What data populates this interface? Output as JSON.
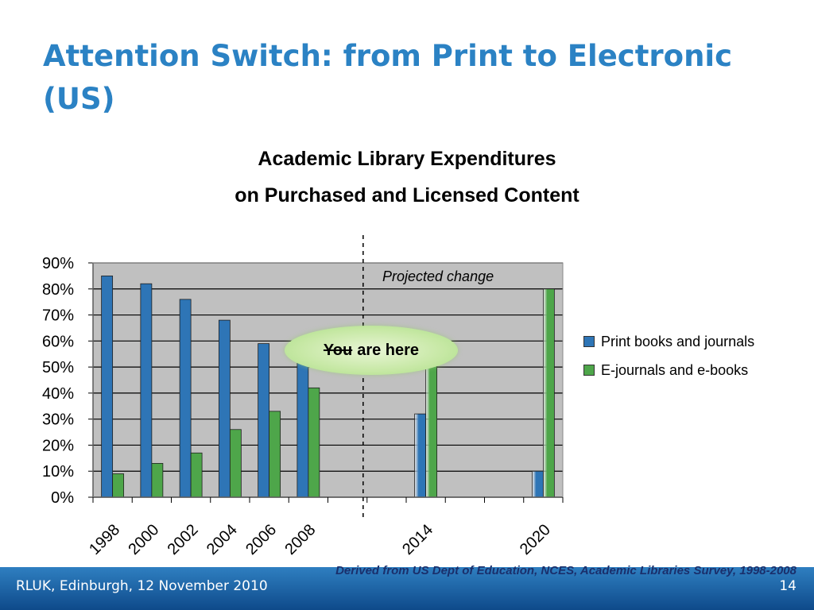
{
  "slide": {
    "title": "Attention Switch: from Print to Electronic (US)",
    "footer_left": "RLUK, Edinburgh, 12 November 2010",
    "page_number": "14",
    "source": "Derived from US Dept of Education, NCES, Academic Libraries Survey, 1998-2008"
  },
  "annotations": {
    "projected": "Projected change",
    "callout_strike": "You",
    "callout_rest": "are here"
  },
  "chart_data": {
    "type": "bar",
    "title_line1": "Academic Library Expenditures",
    "title_line2": "on Purchased and Licensed Content",
    "categories": [
      "1998",
      "2000",
      "2002",
      "2004",
      "2006",
      "2008",
      "",
      "",
      "2014",
      "",
      "",
      "2020"
    ],
    "series": [
      {
        "name": "Print books and journals",
        "color": "#2e75b6",
        "values": [
          85,
          82,
          76,
          68,
          59,
          52,
          null,
          null,
          32,
          null,
          null,
          10
        ]
      },
      {
        "name": "E-journals and e-books",
        "color": "#4ea64a",
        "values": [
          9,
          13,
          17,
          26,
          33,
          42,
          null,
          null,
          60,
          null,
          null,
          80
        ]
      }
    ],
    "projected_categories": [
      "2014",
      "2020"
    ],
    "ylim": [
      0,
      90
    ],
    "yticks": [
      "0%",
      "10%",
      "20%",
      "30%",
      "40%",
      "50%",
      "60%",
      "70%",
      "80%",
      "90%"
    ],
    "grid": true,
    "legend_position": "right",
    "plot_background": "#c0c0c0"
  }
}
